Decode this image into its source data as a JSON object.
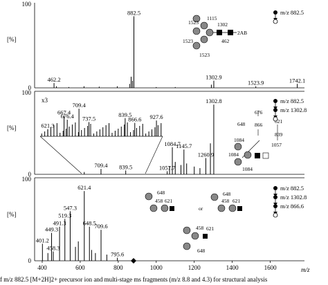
{
  "caption": "f m/z 882.5 [M+2H]2+ precursor ion and multi-stage ms fragments (m/z 8.8 and 4.3) for structural analysis",
  "chart_data": [
    {
      "type": "bar",
      "panel": 1,
      "ylabel": "[%]",
      "ylim": [
        0,
        100
      ],
      "yticks": [
        "100",
        "0"
      ],
      "xlim": [
        360,
        1780
      ],
      "series": [
        {
          "values": [
            {
              "x": 462.2,
              "y": 6,
              "label": "462.2"
            },
            {
              "x": 475,
              "y": 2
            },
            {
              "x": 540,
              "y": 1
            },
            {
              "x": 620,
              "y": 2
            },
            {
              "x": 700,
              "y": 1.5
            },
            {
              "x": 795,
              "y": 2
            },
            {
              "x": 860,
              "y": 5
            },
            {
              "x": 868,
              "y": 14
            },
            {
              "x": 875,
              "y": 9
            },
            {
              "x": 882.5,
              "y": 90,
              "label": "882.5"
            },
            {
              "x": 1000,
              "y": 1
            },
            {
              "x": 1100,
              "y": 1
            },
            {
              "x": 1290,
              "y": 4
            },
            {
              "x": 1302.9,
              "y": 9,
              "label": "1302.9"
            },
            {
              "x": 1523.9,
              "y": 2,
              "label": "1523.9"
            },
            {
              "x": 1742.1,
              "y": 5,
              "label": "1742.1"
            }
          ]
        }
      ],
      "annotations": {
        "msn": [
          "m/z 882.5"
        ],
        "structure_labels": [
          "1523",
          "1115",
          "1523",
          "1523",
          "1302",
          "462",
          "2AB"
        ]
      }
    },
    {
      "type": "bar",
      "panel": 2,
      "ylabel": "[%]",
      "ylim": [
        0,
        100
      ],
      "yticks": [
        "100",
        "0"
      ],
      "xlim": [
        360,
        1780
      ],
      "zoom_label": "x3",
      "series": [
        {
          "values": [
            {
              "x": 621.3,
              "y": 3
            },
            {
              "x": 709.4,
              "y": 7,
              "label": "709.4"
            },
            {
              "x": 839.5,
              "y": 5,
              "label": "839.5"
            },
            {
              "x": 1057.7,
              "y": 4,
              "label": "1057.7"
            },
            {
              "x": 1070,
              "y": 10
            },
            {
              "x": 1084.7,
              "y": 35,
              "label": "1084.7"
            },
            {
              "x": 1100,
              "y": 16
            },
            {
              "x": 1130,
              "y": 12
            },
            {
              "x": 1145.7,
              "y": 32,
              "label": "1145.7"
            },
            {
              "x": 1160,
              "y": 14
            },
            {
              "x": 1200,
              "y": 10
            },
            {
              "x": 1230,
              "y": 8
            },
            {
              "x": 1260.9,
              "y": 21,
              "label": "1260.9"
            },
            {
              "x": 1285,
              "y": 40
            },
            {
              "x": 1302.8,
              "y": 90,
              "label": "1302.8"
            }
          ]
        }
      ],
      "inset_series": {
        "values": [
          {
            "x": 621.3,
            "y": 18,
            "label": "621.3"
          },
          {
            "x": 667.4,
            "y": 52,
            "label": "667.4"
          },
          {
            "x": 676.4,
            "y": 42,
            "label": "676.4"
          },
          {
            "x": 709.4,
            "y": 70,
            "label": "709.4"
          },
          {
            "x": 737.5,
            "y": 36,
            "label": "737.5"
          },
          {
            "x": 839.5,
            "y": 46,
            "label": "839.5"
          },
          {
            "x": 866.6,
            "y": 34,
            "label": "866.6"
          },
          {
            "x": 927.6,
            "y": 40,
            "label": "927.6"
          }
        ]
      },
      "annotations": {
        "msn": [
          "m/z 882.5",
          "m/z 1302.8"
        ],
        "structure_labels": [
          "676",
          "648",
          "866",
          "621",
          "839",
          "1084",
          "1057",
          "1084",
          "1084"
        ]
      }
    },
    {
      "type": "bar",
      "panel": 3,
      "ylabel": "[%]",
      "ylim": [
        0,
        100
      ],
      "yticks": [
        "100",
        "0"
      ],
      "xlim": [
        360,
        1780
      ],
      "xlabel": "m/z",
      "xticks": [
        "400",
        "600",
        "800",
        "1000",
        "1200",
        "1400",
        "1600"
      ],
      "series": [
        {
          "values": [
            {
              "x": 401.2,
              "y": 22,
              "label": "401.2"
            },
            {
              "x": 430,
              "y": 10
            },
            {
              "x": 458.3,
              "y": 12,
              "label": "458.3"
            },
            {
              "x": 449.3,
              "y": 36,
              "label": "449.3"
            },
            {
              "x": 491.3,
              "y": 44,
              "label": "491.3"
            },
            {
              "x": 519.3,
              "y": 54,
              "label": "519.3"
            },
            {
              "x": 547.3,
              "y": 64,
              "label": "547.3"
            },
            {
              "x": 575,
              "y": 18
            },
            {
              "x": 590,
              "y": 25
            },
            {
              "x": 621.4,
              "y": 90,
              "label": "621.4"
            },
            {
              "x": 648.5,
              "y": 44,
              "label": "648.5"
            },
            {
              "x": 660,
              "y": 14
            },
            {
              "x": 680,
              "y": 10
            },
            {
              "x": 709.6,
              "y": 40,
              "label": "709.6"
            },
            {
              "x": 740,
              "y": 8
            },
            {
              "x": 795.6,
              "y": 4,
              "label": "795.6"
            }
          ]
        }
      ],
      "annotations": {
        "msn": [
          "m/z 882.5",
          "m/z 1302.8",
          "m/z 866.6"
        ],
        "structure_labels": [
          "648",
          "458",
          "621",
          "or",
          "648",
          "458",
          "621",
          "458",
          "621",
          "648"
        ]
      }
    }
  ]
}
